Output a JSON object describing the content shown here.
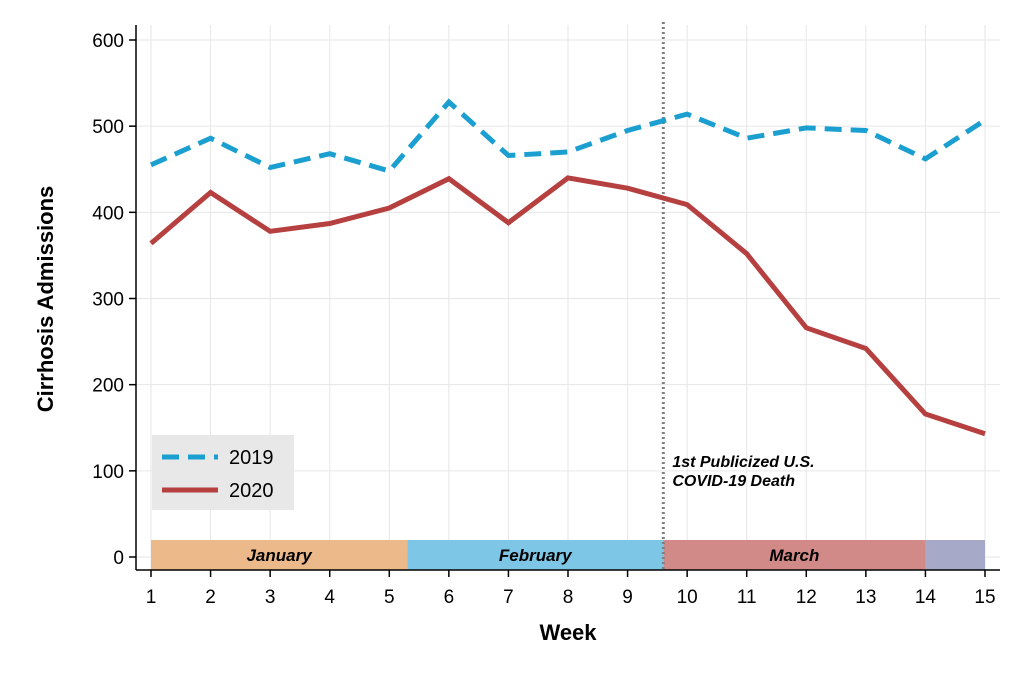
{
  "chart_data": {
    "type": "line",
    "x": [
      1,
      2,
      3,
      4,
      5,
      6,
      7,
      8,
      9,
      10,
      11,
      12,
      13,
      14,
      15
    ],
    "series": [
      {
        "name": "2019",
        "color": "#1b9fd0",
        "dash": "dashed",
        "values": [
          455,
          486,
          452,
          468,
          448,
          528,
          466,
          470,
          495,
          514,
          486,
          498,
          495,
          462,
          507
        ]
      },
      {
        "name": "2020",
        "color": "#b5403f",
        "dash": "solid",
        "values": [
          364,
          423,
          378,
          387,
          405,
          439,
          388,
          440,
          428,
          409,
          352,
          266,
          242,
          166,
          143
        ]
      }
    ],
    "xlabel": "Week",
    "ylabel": "Cirrhosis Admissions",
    "xlim": [
      1,
      15
    ],
    "ylim": [
      0,
      600
    ],
    "yticks": [
      0,
      100,
      200,
      300,
      400,
      500,
      600
    ],
    "xticks": [
      1,
      2,
      3,
      4,
      5,
      6,
      7,
      8,
      9,
      10,
      11,
      12,
      13,
      14,
      15
    ],
    "grid": true,
    "legend_position": "bottom-left",
    "vline": {
      "x": 9.6,
      "style": "dotted",
      "color": "#808080",
      "label_lines": [
        "1st Publicized U.S.",
        "COVID-19 Death"
      ]
    },
    "month_bands": [
      {
        "label": "January",
        "start": 1,
        "end": 5.3,
        "color": "#ebb98a"
      },
      {
        "label": "February",
        "start": 5.3,
        "end": 9.6,
        "color": "#7ec6e6"
      },
      {
        "label": "March",
        "start": 9.6,
        "end": 14,
        "color": "#d28a88"
      },
      {
        "label": "",
        "start": 14,
        "end": 15,
        "color": "#a7a9c8"
      }
    ]
  }
}
